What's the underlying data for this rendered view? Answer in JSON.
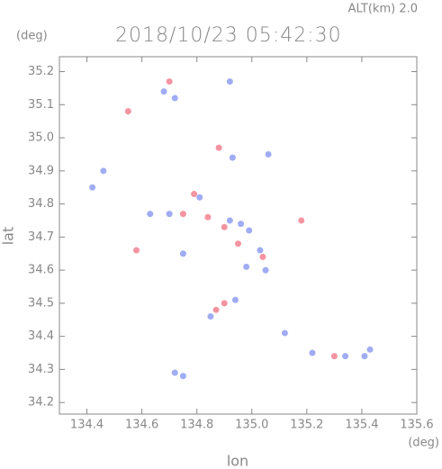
{
  "chart_data": {
    "type": "scatter",
    "title": "2018/10/23 05:42:30",
    "subtitle": "ALT(km)  2.0",
    "x_label": "lon",
    "y_label": "lat",
    "x_unit": "(deg)",
    "y_unit": "(deg)",
    "xlim": [
      134.3,
      135.6
    ],
    "ylim": [
      34.165,
      35.245
    ],
    "xticks": [
      134.4,
      134.6,
      134.8,
      {
        "value": 135.0,
        "label": "135.0"
      },
      135.2,
      135.4,
      135.6
    ],
    "yticks": [
      34.2,
      34.3,
      34.4,
      34.5,
      34.6,
      34.7,
      34.8,
      34.9,
      {
        "value": 35.0,
        "label": "35.0"
      },
      35.1,
      35.2
    ],
    "series": [
      {
        "color": "#f07080",
        "x": [
          134.7,
          134.88,
          134.79,
          134.75,
          134.84,
          134.9,
          134.95,
          135.04,
          134.9,
          134.87,
          135.18,
          134.58,
          135.3,
          134.55
        ],
        "y": [
          35.17,
          34.97,
          34.83,
          34.77,
          34.76,
          34.73,
          34.68,
          34.64,
          34.5,
          34.48,
          34.75,
          34.66,
          34.34,
          35.08
        ]
      },
      {
        "color": "#8090f0",
        "x": [
          134.68,
          134.72,
          134.92,
          135.06,
          134.93,
          134.81,
          134.63,
          134.7,
          134.92,
          134.96,
          134.99,
          135.03,
          134.98,
          135.05,
          134.94,
          134.85,
          135.12,
          135.22,
          135.43,
          135.41,
          134.75,
          134.72,
          134.75,
          134.46,
          134.42,
          135.34
        ],
        "y": [
          35.14,
          35.12,
          35.17,
          34.95,
          34.94,
          34.82,
          34.77,
          34.77,
          34.75,
          34.74,
          34.72,
          34.66,
          34.61,
          34.6,
          34.51,
          34.46,
          34.41,
          34.35,
          34.36,
          34.34,
          34.28,
          34.29,
          34.65,
          34.9,
          34.85,
          34.34
        ]
      }
    ]
  }
}
